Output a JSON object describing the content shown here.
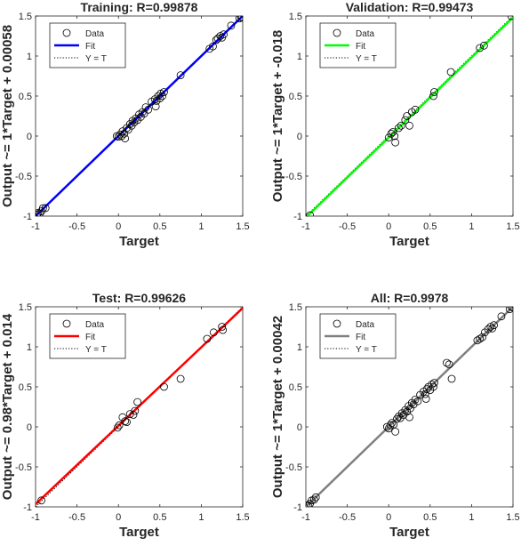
{
  "chart_data": [
    {
      "type": "scatter",
      "title": "Training: R=0.99878",
      "xlabel": "Target",
      "ylabel": "Output ~= 1*Target + 0.00058",
      "xlim": [
        -1,
        1.5
      ],
      "ylim": [
        -1,
        1.5
      ],
      "xticks": [
        "-1",
        "-0.5",
        "0",
        "0.5",
        "1",
        "1.5"
      ],
      "yticks": [
        "-1",
        "-0.5",
        "0",
        "0.5",
        "1",
        "1.5"
      ],
      "fit": {
        "slope": 1,
        "intercept": 0.00058,
        "color": "#0000ff"
      },
      "legend": {
        "position": "top-left",
        "entries": [
          "Data",
          "Fit",
          "Y = T"
        ]
      },
      "points": [
        [
          -0.98,
          -0.98
        ],
        [
          -0.97,
          -0.96
        ],
        [
          -0.95,
          -0.97
        ],
        [
          -0.93,
          -0.94
        ],
        [
          -0.91,
          -0.9
        ],
        [
          -0.88,
          -0.9
        ],
        [
          -0.02,
          0.0
        ],
        [
          0.0,
          -0.01
        ],
        [
          0.02,
          0.02
        ],
        [
          0.04,
          0.0
        ],
        [
          0.05,
          0.06
        ],
        [
          0.07,
          0.03
        ],
        [
          0.08,
          -0.03
        ],
        [
          0.1,
          0.1
        ],
        [
          0.12,
          0.08
        ],
        [
          0.14,
          0.15
        ],
        [
          0.16,
          0.13
        ],
        [
          0.17,
          0.19
        ],
        [
          0.19,
          0.17
        ],
        [
          0.21,
          0.22
        ],
        [
          0.23,
          0.2
        ],
        [
          0.25,
          0.27
        ],
        [
          0.27,
          0.24
        ],
        [
          0.29,
          0.3
        ],
        [
          0.31,
          0.28
        ],
        [
          0.33,
          0.36
        ],
        [
          0.36,
          0.33
        ],
        [
          0.4,
          0.43
        ],
        [
          0.44,
          0.46
        ],
        [
          0.46,
          0.44
        ],
        [
          0.48,
          0.5
        ],
        [
          0.5,
          0.47
        ],
        [
          0.51,
          0.53
        ],
        [
          0.53,
          0.5
        ],
        [
          0.55,
          0.55
        ],
        [
          0.45,
          0.37
        ],
        [
          0.75,
          0.76
        ],
        [
          1.1,
          1.09
        ],
        [
          1.14,
          1.12
        ],
        [
          1.18,
          1.2
        ],
        [
          1.2,
          1.22
        ],
        [
          1.23,
          1.25
        ],
        [
          1.25,
          1.23
        ],
        [
          1.27,
          1.27
        ],
        [
          1.36,
          1.38
        ],
        [
          1.46,
          1.47
        ],
        [
          1.48,
          1.49
        ],
        [
          1.49,
          1.48
        ]
      ]
    },
    {
      "type": "scatter",
      "title": "Validation: R=0.99473",
      "xlabel": "Target",
      "ylabel": "Output ~= 1*Target + -0.018",
      "xlim": [
        -1,
        1.5
      ],
      "ylim": [
        -1,
        1.5
      ],
      "xticks": [
        "-1",
        "-0.5",
        "0",
        "0.5",
        "1",
        "1.5"
      ],
      "yticks": [
        "-1",
        "-0.5",
        "0",
        "0.5",
        "1",
        "1.5"
      ],
      "fit": {
        "slope": 1,
        "intercept": -0.018,
        "color": "#00ff00"
      },
      "legend": {
        "position": "top-left",
        "entries": [
          "Data",
          "Fit",
          "Y = T"
        ]
      },
      "points": [
        [
          -0.95,
          -0.99
        ],
        [
          0.0,
          -0.02
        ],
        [
          0.03,
          0.03
        ],
        [
          0.05,
          0.05
        ],
        [
          0.07,
          0.0
        ],
        [
          0.08,
          -0.08
        ],
        [
          0.12,
          0.1
        ],
        [
          0.15,
          0.13
        ],
        [
          0.2,
          0.2
        ],
        [
          0.22,
          0.25
        ],
        [
          0.28,
          0.3
        ],
        [
          0.32,
          0.33
        ],
        [
          0.25,
          0.13
        ],
        [
          0.55,
          0.55
        ],
        [
          0.54,
          0.5
        ],
        [
          0.75,
          0.8
        ],
        [
          1.1,
          1.1
        ],
        [
          1.15,
          1.13
        ],
        [
          1.48,
          1.5
        ]
      ]
    },
    {
      "type": "scatter",
      "title": "Test: R=0.99626",
      "xlabel": "Target",
      "ylabel": "Output ~= 0.98*Target + 0.014",
      "xlim": [
        -1,
        1.5
      ],
      "ylim": [
        -1,
        1.5
      ],
      "xticks": [
        "-1",
        "-0.5",
        "0",
        "0.5",
        "1",
        "1.5"
      ],
      "yticks": [
        "-1",
        "-0.5",
        "0",
        "0.5",
        "1",
        "1.5"
      ],
      "fit": {
        "slope": 0.98,
        "intercept": 0.014,
        "color": "#ff0000"
      },
      "legend": {
        "position": "top-left",
        "entries": [
          "Data",
          "Fit",
          "Y = T"
        ]
      },
      "points": [
        [
          -0.93,
          -0.92
        ],
        [
          -0.01,
          -0.01
        ],
        [
          0.01,
          0.02
        ],
        [
          0.05,
          0.12
        ],
        [
          0.08,
          0.07
        ],
        [
          0.1,
          0.06
        ],
        [
          0.14,
          0.16
        ],
        [
          0.18,
          0.15
        ],
        [
          0.2,
          0.2
        ],
        [
          0.23,
          0.31
        ],
        [
          0.55,
          0.5
        ],
        [
          0.75,
          0.6
        ],
        [
          1.07,
          1.1
        ],
        [
          1.15,
          1.18
        ],
        [
          1.25,
          1.25
        ],
        [
          1.26,
          1.21
        ]
      ]
    },
    {
      "type": "scatter",
      "title": "All: R=0.9978",
      "xlabel": "Target",
      "ylabel": "Output ~= 1*Target + 0.00042",
      "xlim": [
        -1,
        1.5
      ],
      "ylim": [
        -1,
        1.5
      ],
      "xticks": [
        "-1",
        "-0.5",
        "0",
        "0.5",
        "1",
        "1.5"
      ],
      "yticks": [
        "-1",
        "-0.5",
        "0",
        "0.5",
        "1",
        "1.5"
      ],
      "fit": {
        "slope": 1,
        "intercept": 0.00042,
        "color": "#808080"
      },
      "legend": {
        "position": "top-left",
        "entries": [
          "Data",
          "Fit",
          "Y = T"
        ]
      },
      "points": [
        [
          -0.99,
          -0.99
        ],
        [
          -0.97,
          -0.98
        ],
        [
          -0.95,
          -0.96
        ],
        [
          -0.93,
          -0.92
        ],
        [
          -0.9,
          -0.91
        ],
        [
          -0.88,
          -0.88
        ],
        [
          -0.02,
          0.0
        ],
        [
          0.0,
          -0.02
        ],
        [
          0.02,
          0.02
        ],
        [
          0.04,
          0.05
        ],
        [
          0.06,
          0.03
        ],
        [
          0.08,
          -0.06
        ],
        [
          0.1,
          0.1
        ],
        [
          0.12,
          0.13
        ],
        [
          0.14,
          0.11
        ],
        [
          0.16,
          0.17
        ],
        [
          0.18,
          0.15
        ],
        [
          0.2,
          0.21
        ],
        [
          0.22,
          0.19
        ],
        [
          0.24,
          0.26
        ],
        [
          0.26,
          0.23
        ],
        [
          0.28,
          0.3
        ],
        [
          0.3,
          0.28
        ],
        [
          0.32,
          0.34
        ],
        [
          0.35,
          0.32
        ],
        [
          0.38,
          0.4
        ],
        [
          0.42,
          0.44
        ],
        [
          0.44,
          0.41
        ],
        [
          0.46,
          0.47
        ],
        [
          0.48,
          0.5
        ],
        [
          0.5,
          0.46
        ],
        [
          0.52,
          0.53
        ],
        [
          0.54,
          0.5
        ],
        [
          0.55,
          0.55
        ],
        [
          0.45,
          0.35
        ],
        [
          0.25,
          0.12
        ],
        [
          0.73,
          0.78
        ],
        [
          0.76,
          0.6
        ],
        [
          0.7,
          0.8
        ],
        [
          1.07,
          1.08
        ],
        [
          1.1,
          1.1
        ],
        [
          1.13,
          1.12
        ],
        [
          1.16,
          1.18
        ],
        [
          1.2,
          1.22
        ],
        [
          1.23,
          1.25
        ],
        [
          1.25,
          1.23
        ],
        [
          1.27,
          1.27
        ],
        [
          1.36,
          1.38
        ],
        [
          1.46,
          1.47
        ],
        [
          1.48,
          1.5
        ],
        [
          1.5,
          1.49
        ]
      ]
    }
  ]
}
